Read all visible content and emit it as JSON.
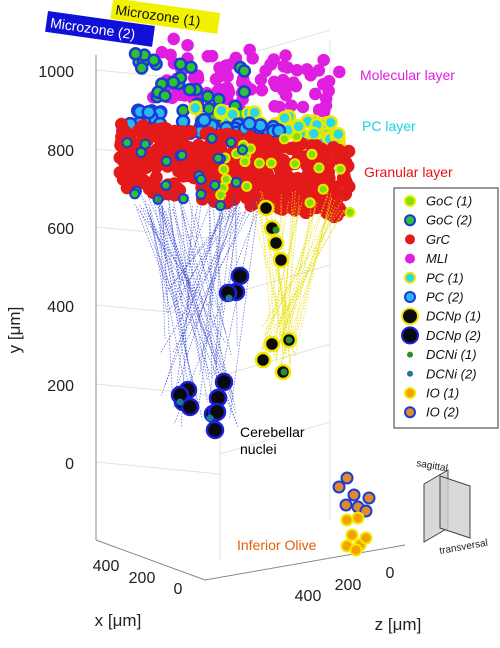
{
  "chart_data": {
    "type": "scatter",
    "projection": "3d",
    "xlabel": "x [μm]",
    "ylabel": "y [μm]",
    "zlabel": "z [μm]",
    "y_ticks": [
      "0",
      "200",
      "400",
      "600",
      "800",
      "1000"
    ],
    "x_ticks": [
      "400",
      "200",
      "0"
    ],
    "z_ticks": [
      "0",
      "200",
      "400"
    ],
    "grid": true,
    "legend_position": "right",
    "annotations": [
      {
        "text": "Molecular layer",
        "color": "#e01ee0",
        "y": 950
      },
      {
        "text": "PC layer",
        "color": "#17d3e6",
        "y": 860
      },
      {
        "text": "Granular layer",
        "color": "#e61414",
        "y": 760
      },
      {
        "text": "Cerebellar",
        "color": "#000000",
        "y": 80
      },
      {
        "text": "nuclei",
        "color": "#000000",
        "y": 40
      },
      {
        "text": "Inferior Olive",
        "color": "#e0600a",
        "y": -210
      }
    ],
    "badges": [
      {
        "text": "Microzone (1)",
        "bg": "#f2f200",
        "fg": "#111111"
      },
      {
        "text": "Microzone (2)",
        "bg": "#1010d8",
        "fg": "#ffffff"
      }
    ],
    "inset": {
      "labels": [
        "sagittal",
        "transversal"
      ]
    },
    "series": [
      {
        "name": "GoC (1)",
        "fill": "#7ee00a",
        "edge": "#e8e800"
      },
      {
        "name": "GoC (2)",
        "fill": "#2ec22e",
        "edge": "#1a3bd8"
      },
      {
        "name": "GrC",
        "fill": "#e41a1a",
        "edge": "#e41a1a"
      },
      {
        "name": "MLI",
        "fill": "#e01ee0",
        "edge": "#e01ee0"
      },
      {
        "name": "PC (1)",
        "fill": "#27d8e8",
        "edge": "#e8e800"
      },
      {
        "name": "PC (2)",
        "fill": "#27b8f0",
        "edge": "#1a3bd8"
      },
      {
        "name": "DCNp (1)",
        "fill": "#0a0a0a",
        "edge": "#f0e800"
      },
      {
        "name": "DCNp (2)",
        "fill": "#0a0a0a",
        "edge": "#1a20d8"
      },
      {
        "name": "DCNi (1)",
        "fill": "#2e8b2e",
        "edge": "#2e8b2e"
      },
      {
        "name": "DCNi (2)",
        "fill": "#1a7a9a",
        "edge": "#1a7a9a"
      },
      {
        "name": "IO (1)",
        "fill": "#f5a000",
        "edge": "#f0e800"
      },
      {
        "name": "IO (2)",
        "fill": "#e08a2a",
        "edge": "#1a3bd8"
      }
    ]
  }
}
